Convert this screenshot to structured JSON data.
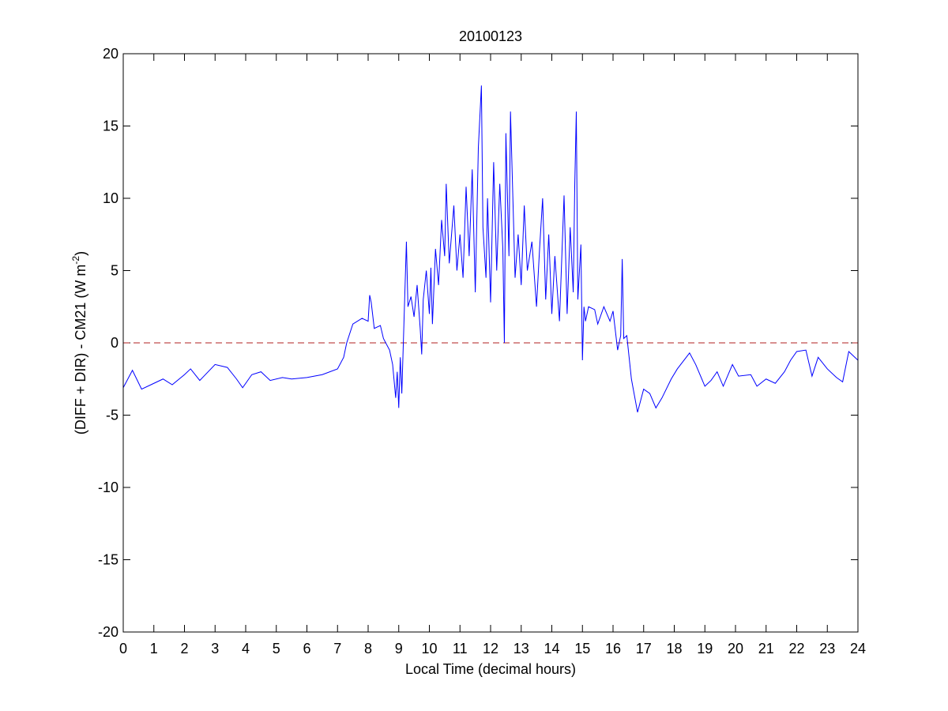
{
  "chart_data": {
    "type": "line",
    "title": "20100123",
    "xlabel": "Local Time (decimal hours)",
    "ylabel_parts": [
      "(DIFF + DIR) - CM21 (W m",
      "-2",
      ")"
    ],
    "x": [
      0,
      0.3,
      0.6,
      1.0,
      1.3,
      1.6,
      2.0,
      2.2,
      2.5,
      3.0,
      3.4,
      3.7,
      3.9,
      4.2,
      4.5,
      4.8,
      5.2,
      5.5,
      6.0,
      6.5,
      7.0,
      7.2,
      7.3,
      7.5,
      7.8,
      8.0,
      8.05,
      8.1,
      8.2,
      8.4,
      8.5,
      8.7,
      8.8,
      8.9,
      8.95,
      9.0,
      9.05,
      9.1,
      9.15,
      9.25,
      9.3,
      9.4,
      9.5,
      9.6,
      9.7,
      9.75,
      9.8,
      9.9,
      10.0,
      10.05,
      10.1,
      10.2,
      10.3,
      10.4,
      10.5,
      10.55,
      10.65,
      10.8,
      10.9,
      11.0,
      11.1,
      11.2,
      11.3,
      11.4,
      11.5,
      11.6,
      11.7,
      11.75,
      11.85,
      11.9,
      12.0,
      12.1,
      12.2,
      12.3,
      12.4,
      12.45,
      12.5,
      12.6,
      12.65,
      12.8,
      12.9,
      13.0,
      13.1,
      13.2,
      13.35,
      13.5,
      13.6,
      13.7,
      13.8,
      13.9,
      14.0,
      14.1,
      14.25,
      14.4,
      14.5,
      14.6,
      14.7,
      14.75,
      14.8,
      14.85,
      14.95,
      15.0,
      15.05,
      15.1,
      15.2,
      15.4,
      15.5,
      15.7,
      15.9,
      16.0,
      16.15,
      16.25,
      16.3,
      16.35,
      16.45,
      16.6,
      16.8,
      17.0,
      17.2,
      17.4,
      17.6,
      17.9,
      18.1,
      18.5,
      18.7,
      19.0,
      19.2,
      19.4,
      19.6,
      19.9,
      20.1,
      20.5,
      20.7,
      21.0,
      21.3,
      21.6,
      21.8,
      22.0,
      22.3,
      22.5,
      22.7,
      23.0,
      23.3,
      23.5,
      23.7,
      24.0
    ],
    "series": [
      {
        "color": "#0000ff",
        "values": [
          -3.1,
          -1.9,
          -3.2,
          -2.8,
          -2.5,
          -2.9,
          -2.2,
          -1.8,
          -2.6,
          -1.5,
          -1.7,
          -2.5,
          -3.1,
          -2.2,
          -2.0,
          -2.6,
          -2.4,
          -2.5,
          -2.4,
          -2.2,
          -1.8,
          -1.0,
          0,
          1.3,
          1.7,
          1.5,
          3.3,
          2.8,
          1.0,
          1.2,
          0.3,
          -0.5,
          -1.5,
          -3.8,
          -2.0,
          -4.5,
          -1.0,
          -3.5,
          0,
          7.0,
          2.5,
          3.2,
          1.8,
          4.0,
          1.0,
          -0.8,
          3.0,
          5.0,
          2.0,
          5.2,
          1.3,
          6.5,
          4.0,
          8.5,
          6.0,
          11.0,
          5.5,
          9.5,
          5.0,
          7.5,
          4.5,
          10.8,
          6.0,
          12.0,
          3.5,
          13.5,
          17.8,
          8.0,
          4.5,
          10.0,
          2.8,
          12.5,
          5.0,
          11.0,
          6.5,
          0,
          14.5,
          6.0,
          16.0,
          4.5,
          7.5,
          4.0,
          9.5,
          5.0,
          7.0,
          2.5,
          6.5,
          10.0,
          3.0,
          7.5,
          2.0,
          6.0,
          1.5,
          10.2,
          2.0,
          8.0,
          3.5,
          11.0,
          16.0,
          3.0,
          6.8,
          -1.2,
          2.5,
          1.5,
          2.5,
          2.3,
          1.3,
          2.5,
          1.5,
          2.2,
          -0.5,
          0.5,
          5.8,
          0.3,
          0.5,
          -2.5,
          -4.8,
          -3.2,
          -3.5,
          -4.5,
          -3.8,
          -2.5,
          -1.8,
          -0.7,
          -1.5,
          -3.0,
          -2.6,
          -2.0,
          -3.0,
          -1.5,
          -2.3,
          -2.2,
          -3.0,
          -2.5,
          -2.8,
          -2.0,
          -1.2,
          -0.6,
          -0.5,
          -2.3,
          -1.0,
          -1.8,
          -2.4,
          -2.7,
          -0.6,
          -1.2
        ]
      }
    ],
    "reference_line": {
      "y": 0,
      "color": "#b22222",
      "style": "dashed"
    },
    "xlim": [
      0,
      24
    ],
    "xticks": [
      0,
      1,
      2,
      3,
      4,
      5,
      6,
      7,
      8,
      9,
      10,
      11,
      12,
      13,
      14,
      15,
      16,
      17,
      18,
      19,
      20,
      21,
      22,
      23,
      24
    ],
    "ylim": [
      -20,
      20
    ],
    "yticks": [
      -20,
      -15,
      -10,
      -5,
      0,
      5,
      10,
      15,
      20
    ]
  }
}
